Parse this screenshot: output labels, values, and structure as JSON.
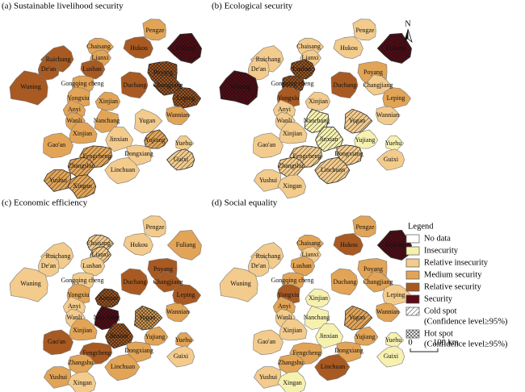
{
  "panels": [
    {
      "title": "(a) Sustainable livelihood security",
      "classes": [
        3,
        3,
        4,
        5,
        4,
        3,
        4,
        4,
        3,
        4,
        4,
        4,
        4,
        3,
        3,
        4,
        3,
        3,
        3,
        2,
        3,
        3,
        2,
        3,
        3,
        2,
        2,
        2,
        3,
        3,
        2,
        3,
        3
      ],
      "spots": [
        null,
        null,
        null,
        7,
        null,
        null,
        null,
        null,
        null,
        null,
        7,
        7,
        null,
        null,
        null,
        7,
        null,
        null,
        null,
        null,
        null,
        null,
        null,
        null,
        6,
        null,
        null,
        6,
        6,
        6,
        null,
        6,
        6
      ]
    },
    {
      "title": "(b) Ecological security",
      "classes": [
        2,
        2,
        2,
        5,
        2,
        2,
        2,
        4,
        4,
        4,
        3,
        2,
        5,
        4,
        2,
        3,
        2,
        2,
        1,
        2,
        2,
        2,
        1,
        2,
        1,
        2,
        1,
        2,
        2,
        2,
        2,
        2,
        2
      ],
      "spots": [
        null,
        null,
        null,
        7,
        null,
        null,
        null,
        7,
        7,
        null,
        null,
        null,
        7,
        null,
        null,
        null,
        null,
        null,
        6,
        6,
        null,
        null,
        6,
        null,
        null,
        6,
        null,
        null,
        6,
        6,
        6,
        null,
        null
      ]
    },
    {
      "title": "(c) Economic efficiency",
      "classes": [
        2,
        2,
        2,
        3,
        2,
        2,
        2,
        2,
        2,
        4,
        4,
        4,
        2,
        3,
        4,
        4,
        2,
        2,
        5,
        3,
        3,
        3,
        4,
        4,
        3,
        3,
        3,
        2,
        4,
        3,
        3,
        3,
        2
      ],
      "spots": [
        6,
        null,
        null,
        null,
        null,
        6,
        null,
        null,
        null,
        null,
        null,
        null,
        null,
        null,
        7,
        null,
        null,
        null,
        7,
        7,
        null,
        null,
        7,
        null,
        null,
        null,
        null,
        null,
        null,
        null,
        null,
        null,
        null
      ]
    },
    {
      "title": "(d) Social equality",
      "classes": [
        3,
        3,
        4,
        5,
        2,
        2,
        2,
        3,
        3,
        3,
        3,
        3,
        2,
        4,
        1,
        2,
        3,
        2,
        1,
        3,
        3,
        2,
        1,
        2,
        3,
        3,
        1,
        1,
        3,
        3,
        4,
        2,
        1
      ],
      "spots": [
        null,
        null,
        null,
        7,
        null,
        null,
        null,
        null,
        null,
        null,
        null,
        null,
        null,
        null,
        null,
        null,
        null,
        null,
        null,
        6,
        null,
        null,
        null,
        null,
        null,
        null,
        null,
        null,
        null,
        null,
        null,
        null,
        null
      ]
    }
  ],
  "counties": [
    "Chaisang",
    "Pengze",
    "Hukou",
    "Fuliang",
    "Ruichang",
    "Lianxi",
    "De'an",
    "Lushan",
    "Gongqing cheng",
    "Duchang",
    "Poyang",
    "Changjiang",
    "Wuning",
    "Yongxiu",
    "Xinjian",
    "Leping",
    "Anyi",
    "Wanli",
    "Nanchang",
    "Yugan",
    "Wannian",
    "Xinjian",
    "Jinxian",
    "Gao'an",
    "Yujiang",
    "Dongxiang",
    "Yuehu",
    "Guixi",
    "Fengcheng",
    "Zhangshu",
    "Linchuan",
    "Yushui",
    "Xingan"
  ],
  "legend": {
    "title": "Legend",
    "items": [
      {
        "label": [
          "No data"
        ],
        "color": "#ffffff"
      },
      {
        "label": [
          "Insecurity"
        ],
        "color": "#f7f1b0"
      },
      {
        "label": [
          "Relative insecurity"
        ],
        "color": "#f3cb8c"
      },
      {
        "label": [
          "Medium security"
        ],
        "color": "#e2a456"
      },
      {
        "label": [
          "Relative security"
        ],
        "color": "#a85a22"
      },
      {
        "label": [
          "Security"
        ],
        "color": "#5c0b16"
      },
      {
        "label": [
          "Cold spot",
          "(Confidence level≥95%)"
        ],
        "pattern": "cold"
      },
      {
        "label": [
          "Hot spot",
          "(Confidence level≥95%)"
        ],
        "pattern": "hot"
      }
    ]
  },
  "scale": {
    "start": "0",
    "end": "100 km"
  },
  "north": "N"
}
